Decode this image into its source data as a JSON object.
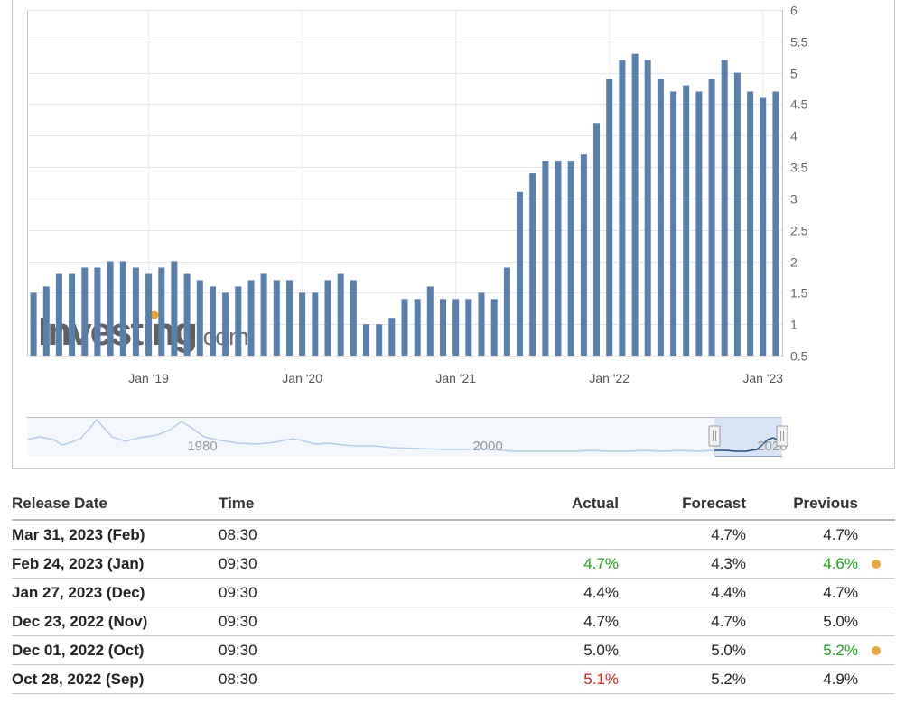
{
  "chart_data": {
    "type": "bar",
    "categories": [
      "2018-04",
      "2018-05",
      "2018-06",
      "2018-07",
      "2018-08",
      "2018-09",
      "2018-10",
      "2018-11",
      "2018-12",
      "2019-01",
      "2019-02",
      "2019-03",
      "2019-04",
      "2019-05",
      "2019-06",
      "2019-07",
      "2019-08",
      "2019-09",
      "2019-10",
      "2019-11",
      "2019-12",
      "2020-01",
      "2020-02",
      "2020-03",
      "2020-04",
      "2020-05",
      "2020-06",
      "2020-07",
      "2020-08",
      "2020-09",
      "2020-10",
      "2020-11",
      "2020-12",
      "2021-01",
      "2021-02",
      "2021-03",
      "2021-04",
      "2021-05",
      "2021-06",
      "2021-07",
      "2021-08",
      "2021-09",
      "2021-10",
      "2021-11",
      "2021-12",
      "2022-01",
      "2022-02",
      "2022-03",
      "2022-04",
      "2022-05",
      "2022-06",
      "2022-07",
      "2022-08",
      "2022-09",
      "2022-10",
      "2022-11",
      "2022-12",
      "2023-01",
      "2023-02"
    ],
    "values": [
      1.5,
      1.6,
      1.8,
      1.8,
      1.9,
      1.9,
      2.0,
      2.0,
      1.9,
      1.8,
      1.9,
      2.0,
      1.8,
      1.7,
      1.6,
      1.5,
      1.6,
      1.7,
      1.8,
      1.7,
      1.7,
      1.5,
      1.5,
      1.7,
      1.8,
      1.7,
      1.0,
      1.0,
      1.1,
      1.4,
      1.4,
      1.6,
      1.4,
      1.4,
      1.4,
      1.5,
      1.4,
      1.9,
      3.1,
      3.4,
      3.6,
      3.6,
      3.6,
      3.7,
      4.2,
      4.9,
      5.2,
      5.3,
      5.2,
      4.9,
      4.7,
      4.8,
      4.7,
      4.9,
      5.2,
      5.0,
      4.7,
      4.6,
      4.7
    ],
    "x_tick_labels": [
      {
        "label": "Jan '19",
        "category": "2019-01"
      },
      {
        "label": "Jan '20",
        "category": "2020-01"
      },
      {
        "label": "Jan '21",
        "category": "2021-01"
      },
      {
        "label": "Jan '22",
        "category": "2022-01"
      },
      {
        "label": "Jan '23",
        "category": "2023-01"
      }
    ],
    "y_ticks": [
      "0.5",
      "1",
      "1.5",
      "2",
      "2.5",
      "3",
      "3.5",
      "4",
      "4.5",
      "5",
      "5.5",
      "6"
    ],
    "ylim": [
      0.5,
      6
    ],
    "grid": true,
    "bar_color": "#5b7fab",
    "title": "",
    "xlabel": "",
    "ylabel": "",
    "navigator": {
      "labels": [
        "1980",
        "2000",
        "2020"
      ]
    }
  },
  "watermark": {
    "main": "Investing",
    "suffix": ".com"
  },
  "table": {
    "headers": {
      "date": "Release Date",
      "time": "Time",
      "actual": "Actual",
      "forecast": "Forecast",
      "previous": "Previous"
    },
    "rows": [
      {
        "date": "Mar 31, 2023 (Feb)",
        "time": "08:30",
        "actual": "",
        "forecast": "4.7%",
        "previous": "4.7%",
        "actual_color": "#222222",
        "previous_color": "#222222",
        "dot": false
      },
      {
        "date": "Feb 24, 2023 (Jan)",
        "time": "09:30",
        "actual": "4.7%",
        "forecast": "4.3%",
        "previous": "4.6%",
        "actual_color": "#1aa31a",
        "previous_color": "#1aa31a",
        "dot": true
      },
      {
        "date": "Jan 27, 2023 (Dec)",
        "time": "09:30",
        "actual": "4.4%",
        "forecast": "4.4%",
        "previous": "4.7%",
        "actual_color": "#222222",
        "previous_color": "#222222",
        "dot": false
      },
      {
        "date": "Dec 23, 2022 (Nov)",
        "time": "09:30",
        "actual": "4.7%",
        "forecast": "4.7%",
        "previous": "5.0%",
        "actual_color": "#222222",
        "previous_color": "#222222",
        "dot": false
      },
      {
        "date": "Dec 01, 2022 (Oct)",
        "time": "09:30",
        "actual": "5.0%",
        "forecast": "5.0%",
        "previous": "5.2%",
        "actual_color": "#222222",
        "previous_color": "#1aa31a",
        "dot": true
      },
      {
        "date": "Oct 28, 2022 (Sep)",
        "time": "08:30",
        "actual": "5.1%",
        "forecast": "5.2%",
        "previous": "4.9%",
        "actual_color": "#e0201a",
        "previous_color": "#222222",
        "dot": false
      }
    ],
    "dot_color": "#e8a83a"
  }
}
